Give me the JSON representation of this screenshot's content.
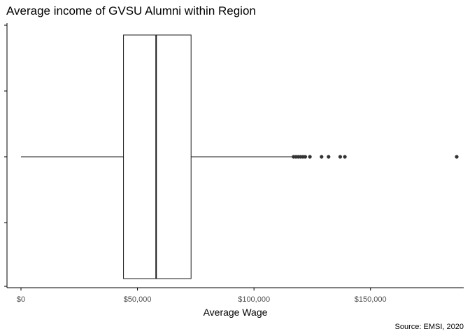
{
  "chart_data": {
    "type": "boxplot",
    "title": "Average income of GVSU Alumni within Region",
    "xlabel": "Average Wage",
    "ylabel": "",
    "caption": "Source: EMSI, 2020",
    "xlim": [
      -6000,
      190000
    ],
    "x_ticks": [
      0,
      50000,
      100000,
      150000
    ],
    "x_tick_labels": [
      "$0",
      "$50,000",
      "$100,000",
      "$150,000"
    ],
    "grid": false,
    "box": {
      "min": 0,
      "q1": 44000,
      "median": 58000,
      "q3": 73000,
      "max": 117000
    },
    "outliers": [
      117000,
      118000,
      119000,
      120000,
      121000,
      122000,
      124000,
      129000,
      132000,
      137000,
      139000,
      187000
    ],
    "colors": {
      "box_line": "#1a1a1a",
      "outlier": "#333333",
      "axis": "#000000",
      "tick_text": "#4d4d4d"
    }
  }
}
